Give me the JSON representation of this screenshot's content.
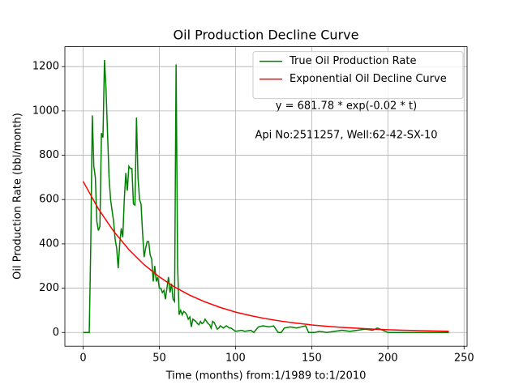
{
  "chart_data": {
    "type": "line",
    "title": "Oil Production Decline Curve",
    "xlabel": "Time (months) from:1/1989 to:1/2010",
    "ylabel": "Oil Production Rate (bbl/month)",
    "annotations": [
      "y = 681.78 * exp(-0.02 * t)",
      "Api No:2511257, Well:62-42-SX-10"
    ],
    "xlim": [
      -12,
      252
    ],
    "ylim": [
      -62,
      1290
    ],
    "xticks": [
      0,
      50,
      100,
      150,
      200,
      250
    ],
    "yticks": [
      0,
      200,
      400,
      600,
      800,
      1000,
      1200
    ],
    "grid": true,
    "legend": "upper right",
    "series": [
      {
        "name": "True Oil Production Rate",
        "color": "#008000",
        "x": [
          0,
          1,
          2,
          3,
          4,
          5,
          6,
          7,
          8,
          9,
          10,
          11,
          12,
          13,
          14,
          15,
          16,
          17,
          18,
          19,
          20,
          21,
          22,
          23,
          24,
          25,
          26,
          27,
          28,
          29,
          30,
          31,
          32,
          33,
          34,
          35,
          36,
          37,
          38,
          39,
          40,
          41,
          42,
          43,
          44,
          45,
          46,
          47,
          48,
          49,
          50,
          51,
          52,
          53,
          54,
          55,
          56,
          57,
          58,
          59,
          60,
          61,
          62,
          63,
          64,
          65,
          66,
          67,
          68,
          69,
          70,
          71,
          72,
          73,
          74,
          75,
          76,
          77,
          78,
          79,
          80,
          81,
          82,
          83,
          84,
          85,
          86,
          87,
          88,
          89,
          90,
          91,
          92,
          93,
          94,
          95,
          96,
          97,
          98,
          100,
          104,
          106,
          110,
          112,
          115,
          118,
          122,
          125,
          128,
          130,
          132,
          136,
          140,
          143,
          146,
          148,
          152,
          155,
          160,
          165,
          170,
          175,
          180,
          185,
          190,
          193,
          195,
          200,
          210,
          220,
          230,
          240
        ],
        "values": [
          0,
          0,
          0,
          0,
          0,
          400,
          980,
          750,
          700,
          500,
          460,
          480,
          900,
          880,
          1230,
          1100,
          900,
          700,
          600,
          550,
          500,
          420,
          380,
          290,
          400,
          470,
          430,
          600,
          720,
          640,
          750,
          740,
          740,
          580,
          575,
          970,
          700,
          600,
          580,
          450,
          340,
          380,
          410,
          410,
          350,
          330,
          230,
          300,
          230,
          250,
          200,
          200,
          180,
          190,
          150,
          200,
          250,
          180,
          220,
          150,
          140,
          1210,
          300,
          80,
          100,
          80,
          95,
          90,
          80,
          60,
          70,
          25,
          60,
          55,
          50,
          40,
          35,
          50,
          40,
          45,
          60,
          50,
          40,
          35,
          20,
          50,
          45,
          30,
          15,
          20,
          30,
          25,
          20,
          25,
          30,
          25,
          20,
          20,
          15,
          5,
          10,
          5,
          10,
          0,
          25,
          30,
          25,
          30,
          0,
          0,
          20,
          25,
          20,
          25,
          30,
          0,
          0,
          5,
          0,
          5,
          10,
          5,
          10,
          15,
          10,
          20,
          15,
          0,
          0,
          0,
          0,
          0
        ]
      },
      {
        "name": "Exponential Oil Decline Curve",
        "color": "#ff0000",
        "x": [
          0,
          10,
          20,
          30,
          40,
          50,
          60,
          70,
          80,
          90,
          100,
          110,
          120,
          130,
          140,
          150,
          160,
          170,
          180,
          190,
          200,
          210,
          220,
          230,
          240
        ],
        "values": [
          682,
          558,
          457,
          374,
          306,
          251,
          205,
          168,
          138,
          113,
          92,
          76,
          62,
          51,
          42,
          34,
          28,
          23,
          19,
          15,
          12.5,
          10,
          8.4,
          6.9,
          5.6
        ]
      }
    ]
  }
}
